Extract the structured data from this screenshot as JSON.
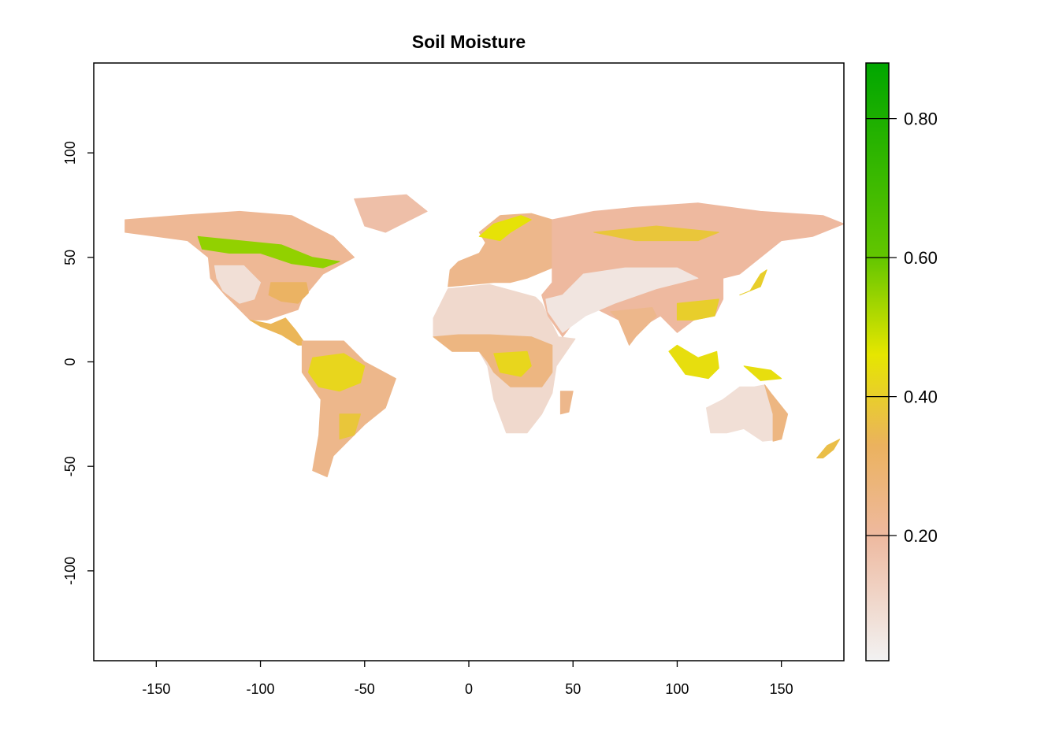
{
  "chart_data": {
    "type": "heatmap",
    "title": "Soil Moisture",
    "xlabel": "",
    "ylabel": "",
    "xlim": [
      -180,
      180
    ],
    "ylim": [
      -143,
      143
    ],
    "x_ticks": [
      -150,
      -100,
      -50,
      0,
      50,
      100,
      150
    ],
    "x_tick_labels": [
      "-150",
      "-100",
      "-50",
      "0",
      "50",
      "100",
      "150"
    ],
    "y_ticks": [
      -100,
      -50,
      0,
      50,
      100
    ],
    "y_tick_labels": [
      "-100",
      "-50",
      "0",
      "50",
      "100"
    ],
    "legend": {
      "placement": "right",
      "range": [
        0.02,
        0.88
      ],
      "ticks": [
        0.2,
        0.4,
        0.6,
        0.8
      ],
      "tick_labels": [
        "0.20",
        "0.40",
        "0.60",
        "0.80"
      ],
      "color_stops": [
        {
          "value": 0.02,
          "color": "#f2f2f2"
        },
        {
          "value": 0.2,
          "color": "#eeb99f"
        },
        {
          "value": 0.33,
          "color": "#ebb25e"
        },
        {
          "value": 0.46,
          "color": "#e6e600"
        },
        {
          "value": 0.6,
          "color": "#63c600"
        },
        {
          "value": 0.88,
          "color": "#00a600"
        }
      ]
    },
    "regions": [
      {
        "name": "north-america",
        "value": 0.22,
        "polygon": [
          [
            -165,
            68
          ],
          [
            -140,
            70
          ],
          [
            -110,
            72
          ],
          [
            -85,
            70
          ],
          [
            -65,
            60
          ],
          [
            -55,
            50
          ],
          [
            -70,
            42
          ],
          [
            -80,
            30
          ],
          [
            -82,
            25
          ],
          [
            -97,
            20
          ],
          [
            -105,
            20
          ],
          [
            -117,
            32
          ],
          [
            -124,
            40
          ],
          [
            -125,
            50
          ],
          [
            -135,
            58
          ],
          [
            -150,
            60
          ],
          [
            -165,
            62
          ]
        ]
      },
      {
        "name": "canada-wet-belt",
        "value": 0.55,
        "polygon": [
          [
            -130,
            60
          ],
          [
            -110,
            58
          ],
          [
            -90,
            56
          ],
          [
            -75,
            50
          ],
          [
            -62,
            48
          ],
          [
            -70,
            45
          ],
          [
            -85,
            47
          ],
          [
            -100,
            52
          ],
          [
            -115,
            52
          ],
          [
            -128,
            54
          ]
        ]
      },
      {
        "name": "us-west-dry",
        "value": 0.08,
        "polygon": [
          [
            -122,
            46
          ],
          [
            -108,
            46
          ],
          [
            -100,
            38
          ],
          [
            -103,
            30
          ],
          [
            -110,
            28
          ],
          [
            -118,
            34
          ],
          [
            -121,
            40
          ]
        ]
      },
      {
        "name": "us-southeast",
        "value": 0.32,
        "polygon": [
          [
            -95,
            38
          ],
          [
            -78,
            38
          ],
          [
            -77,
            33
          ],
          [
            -82,
            28
          ],
          [
            -90,
            29
          ],
          [
            -96,
            32
          ]
        ]
      },
      {
        "name": "central-america",
        "value": 0.34,
        "polygon": [
          [
            -105,
            20
          ],
          [
            -95,
            18
          ],
          [
            -88,
            21
          ],
          [
            -83,
            15
          ],
          [
            -78,
            8
          ],
          [
            -82,
            8
          ],
          [
            -90,
            13
          ],
          [
            -100,
            17
          ]
        ]
      },
      {
        "name": "greenland-coast",
        "value": 0.18,
        "polygon": [
          [
            -55,
            78
          ],
          [
            -30,
            80
          ],
          [
            -20,
            72
          ],
          [
            -40,
            62
          ],
          [
            -50,
            65
          ]
        ]
      },
      {
        "name": "south-america",
        "value": 0.24,
        "polygon": [
          [
            -80,
            10
          ],
          [
            -60,
            10
          ],
          [
            -50,
            0
          ],
          [
            -35,
            -8
          ],
          [
            -40,
            -22
          ],
          [
            -50,
            -30
          ],
          [
            -58,
            -38
          ],
          [
            -65,
            -45
          ],
          [
            -68,
            -55
          ],
          [
            -75,
            -52
          ],
          [
            -72,
            -35
          ],
          [
            -71,
            -18
          ],
          [
            -80,
            -5
          ]
        ]
      },
      {
        "name": "amazon-basin",
        "value": 0.42,
        "polygon": [
          [
            -75,
            2
          ],
          [
            -60,
            4
          ],
          [
            -50,
            -2
          ],
          [
            -52,
            -10
          ],
          [
            -62,
            -14
          ],
          [
            -72,
            -12
          ],
          [
            -77,
            -5
          ]
        ]
      },
      {
        "name": "la-plata",
        "value": 0.38,
        "polygon": [
          [
            -62,
            -25
          ],
          [
            -52,
            -25
          ],
          [
            -55,
            -35
          ],
          [
            -62,
            -37
          ]
        ]
      },
      {
        "name": "europe",
        "value": 0.24,
        "polygon": [
          [
            -10,
            36
          ],
          [
            -9,
            44
          ],
          [
            -5,
            48
          ],
          [
            5,
            52
          ],
          [
            8,
            57
          ],
          [
            5,
            62
          ],
          [
            15,
            70
          ],
          [
            30,
            71
          ],
          [
            40,
            68
          ],
          [
            40,
            55
          ],
          [
            40,
            45
          ],
          [
            28,
            40
          ],
          [
            20,
            38
          ],
          [
            12,
            38
          ]
        ]
      },
      {
        "name": "scandinavia-wet",
        "value": 0.45,
        "polygon": [
          [
            5,
            60
          ],
          [
            12,
            66
          ],
          [
            25,
            70
          ],
          [
            30,
            68
          ],
          [
            20,
            62
          ],
          [
            15,
            58
          ]
        ]
      },
      {
        "name": "africa",
        "value": 0.1,
        "polygon": [
          [
            -17,
            21
          ],
          [
            -10,
            35
          ],
          [
            10,
            37
          ],
          [
            32,
            31
          ],
          [
            35,
            28
          ],
          [
            43,
            12
          ],
          [
            51,
            11
          ],
          [
            42,
            -2
          ],
          [
            40,
            -15
          ],
          [
            35,
            -25
          ],
          [
            28,
            -34
          ],
          [
            18,
            -34
          ],
          [
            12,
            -18
          ],
          [
            9,
            -2
          ],
          [
            5,
            5
          ],
          [
            -8,
            5
          ],
          [
            -17,
            12
          ]
        ]
      },
      {
        "name": "sahel-tropics",
        "value": 0.26,
        "polygon": [
          [
            -17,
            12
          ],
          [
            -5,
            13
          ],
          [
            10,
            13
          ],
          [
            30,
            12
          ],
          [
            40,
            8
          ],
          [
            40,
            -5
          ],
          [
            35,
            -12
          ],
          [
            20,
            -12
          ],
          [
            12,
            -5
          ],
          [
            9,
            0
          ],
          [
            5,
            5
          ],
          [
            -8,
            5
          ]
        ]
      },
      {
        "name": "congo-basin",
        "value": 0.42,
        "polygon": [
          [
            12,
            4
          ],
          [
            28,
            5
          ],
          [
            30,
            -2
          ],
          [
            25,
            -7
          ],
          [
            15,
            -5
          ]
        ]
      },
      {
        "name": "madagascar",
        "value": 0.24,
        "polygon": [
          [
            44,
            -14
          ],
          [
            50,
            -14
          ],
          [
            48,
            -24
          ],
          [
            44,
            -25
          ]
        ]
      },
      {
        "name": "asia",
        "value": 0.2,
        "polygon": [
          [
            40,
            45
          ],
          [
            40,
            68
          ],
          [
            60,
            72
          ],
          [
            80,
            74
          ],
          [
            110,
            76
          ],
          [
            140,
            72
          ],
          [
            170,
            70
          ],
          [
            180,
            66
          ],
          [
            165,
            60
          ],
          [
            150,
            58
          ],
          [
            140,
            50
          ],
          [
            130,
            42
          ],
          [
            122,
            40
          ],
          [
            122,
            30
          ],
          [
            118,
            22
          ],
          [
            108,
            20
          ],
          [
            100,
            14
          ],
          [
            92,
            22
          ],
          [
            80,
            15
          ],
          [
            77,
            8
          ],
          [
            72,
            20
          ],
          [
            62,
            25
          ],
          [
            55,
            25
          ],
          [
            45,
            12
          ],
          [
            38,
            22
          ],
          [
            35,
            32
          ],
          [
            40,
            38
          ]
        ]
      },
      {
        "name": "siberia-wet",
        "value": 0.38,
        "polygon": [
          [
            60,
            62
          ],
          [
            90,
            65
          ],
          [
            120,
            62
          ],
          [
            110,
            58
          ],
          [
            80,
            58
          ]
        ]
      },
      {
        "name": "arabia-central-asia-dry",
        "value": 0.06,
        "polygon": [
          [
            37,
            30
          ],
          [
            45,
            32
          ],
          [
            55,
            42
          ],
          [
            75,
            45
          ],
          [
            100,
            45
          ],
          [
            110,
            40
          ],
          [
            90,
            35
          ],
          [
            70,
            28
          ],
          [
            56,
            22
          ],
          [
            45,
            14
          ],
          [
            38,
            24
          ]
        ]
      },
      {
        "name": "south-china",
        "value": 0.4,
        "polygon": [
          [
            100,
            28
          ],
          [
            120,
            30
          ],
          [
            118,
            22
          ],
          [
            108,
            20
          ],
          [
            100,
            20
          ]
        ]
      },
      {
        "name": "india",
        "value": 0.24,
        "polygon": [
          [
            68,
            24
          ],
          [
            88,
            26
          ],
          [
            90,
            22
          ],
          [
            80,
            12
          ],
          [
            77,
            8
          ],
          [
            72,
            20
          ]
        ]
      },
      {
        "name": "japan",
        "value": 0.4,
        "polygon": [
          [
            130,
            32
          ],
          [
            140,
            36
          ],
          [
            143,
            44
          ],
          [
            140,
            42
          ],
          [
            135,
            34
          ]
        ]
      },
      {
        "name": "southeast-asia",
        "value": 0.44,
        "polygon": [
          [
            96,
            5
          ],
          [
            104,
            -6
          ],
          [
            115,
            -8
          ],
          [
            120,
            -3
          ],
          [
            119,
            5
          ],
          [
            110,
            2
          ],
          [
            100,
            8
          ]
        ]
      },
      {
        "name": "new-guinea",
        "value": 0.44,
        "polygon": [
          [
            132,
            -2
          ],
          [
            145,
            -4
          ],
          [
            150,
            -8
          ],
          [
            140,
            -9
          ]
        ]
      },
      {
        "name": "australia",
        "value": 0.08,
        "polygon": [
          [
            114,
            -22
          ],
          [
            122,
            -18
          ],
          [
            130,
            -12
          ],
          [
            137,
            -12
          ],
          [
            142,
            -11
          ],
          [
            145,
            -15
          ],
          [
            153,
            -25
          ],
          [
            150,
            -37
          ],
          [
            141,
            -38
          ],
          [
            132,
            -32
          ],
          [
            124,
            -34
          ],
          [
            116,
            -34
          ]
        ]
      },
      {
        "name": "australia-east",
        "value": 0.26,
        "polygon": [
          [
            142,
            -11
          ],
          [
            145,
            -15
          ],
          [
            153,
            -25
          ],
          [
            150,
            -37
          ],
          [
            146,
            -38
          ],
          [
            146,
            -25
          ]
        ]
      },
      {
        "name": "new-zealand",
        "value": 0.36,
        "polygon": [
          [
            167,
            -46
          ],
          [
            172,
            -40
          ],
          [
            178,
            -37
          ],
          [
            175,
            -42
          ],
          [
            170,
            -46
          ]
        ]
      }
    ]
  }
}
